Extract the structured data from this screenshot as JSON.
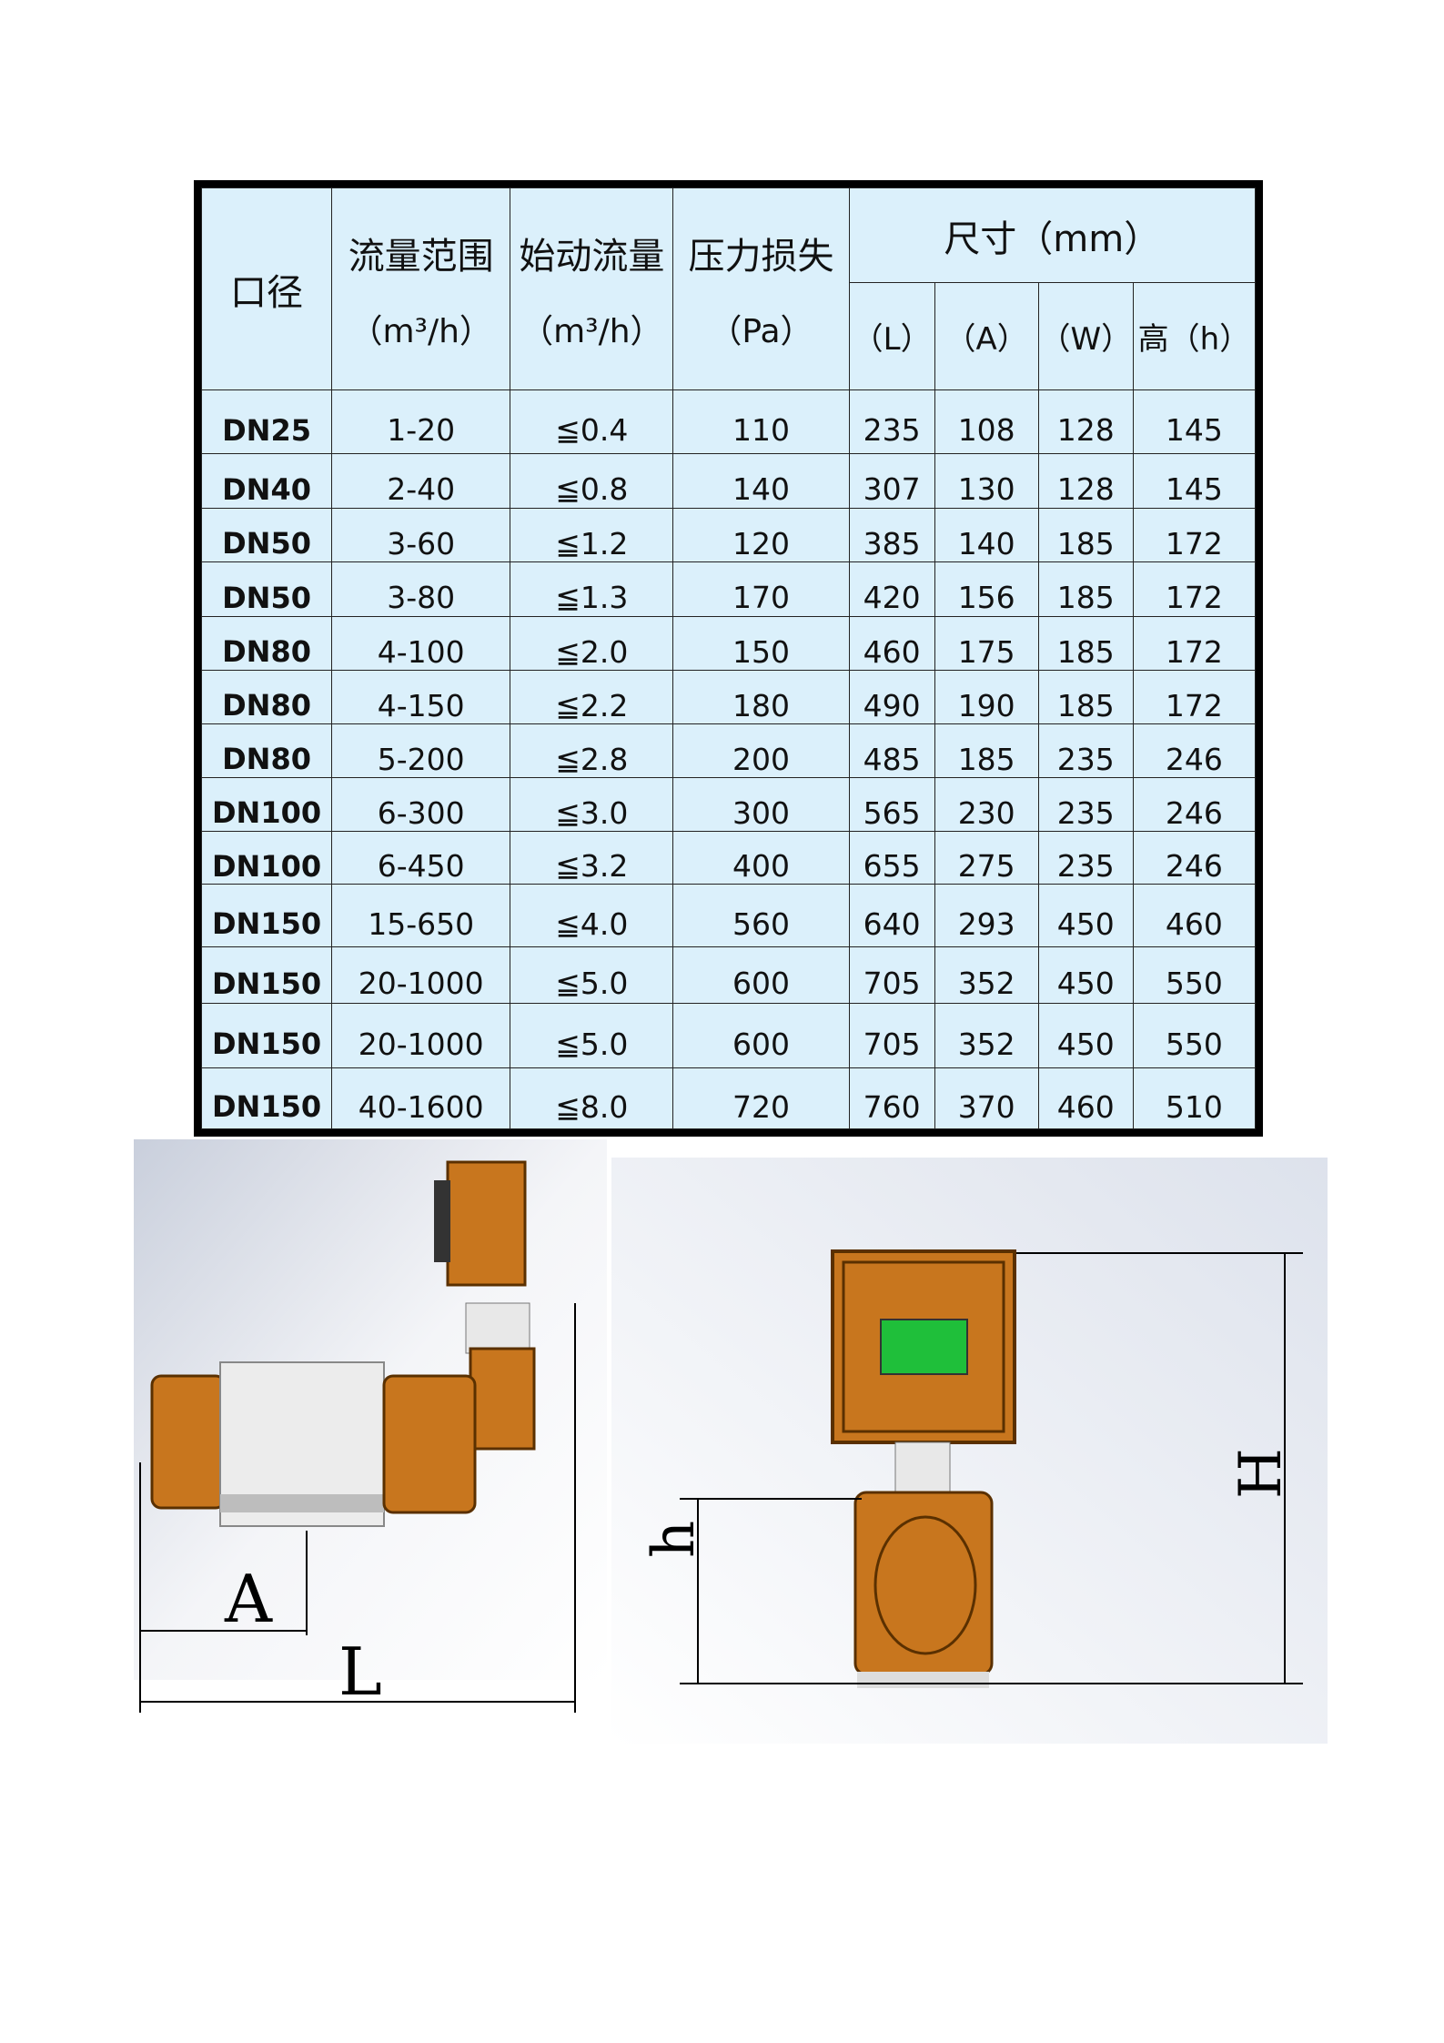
{
  "table": {
    "headers": {
      "caliber": "口径",
      "flow_range": "流量范围",
      "flow_range_unit": "（m³/h）",
      "start_flow": "始动流量",
      "start_flow_unit": "（m³/h）",
      "pressure_loss": "压力损失",
      "pressure_loss_unit": "（Pa）",
      "dimensions": "尺寸（mm）",
      "L": "（L）",
      "A": "（A）",
      "W": "（W）",
      "h": "高（h）"
    },
    "rows": [
      [
        "DN25",
        "1-20",
        "≦0.4",
        "110",
        "235",
        "108",
        "128",
        "145"
      ],
      [
        "DN40",
        "2-40",
        "≦0.8",
        "140",
        "307",
        "130",
        "128",
        "145"
      ],
      [
        "DN50",
        "3-60",
        "≦1.2",
        "120",
        "385",
        "140",
        "185",
        "172"
      ],
      [
        "DN50",
        "3-80",
        "≦1.3",
        "170",
        "420",
        "156",
        "185",
        "172"
      ],
      [
        "DN80",
        "4-100",
        "≦2.0",
        "150",
        "460",
        "175",
        "185",
        "172"
      ],
      [
        "DN80",
        "4-150",
        "≦2.2",
        "180",
        "490",
        "190",
        "185",
        "172"
      ],
      [
        "DN80",
        "5-200",
        "≦2.8",
        "200",
        "485",
        "185",
        "235",
        "246"
      ],
      [
        "DN100",
        "6-300",
        "≦3.0",
        "300",
        "565",
        "230",
        "235",
        "246"
      ],
      [
        "DN100",
        "6-450",
        "≦3.2",
        "400",
        "655",
        "275",
        "235",
        "246"
      ],
      [
        "DN150",
        "15-650",
        "≦4.0",
        "560",
        "640",
        "293",
        "450",
        "460"
      ],
      [
        "DN150",
        "20-1000",
        "≦5.0",
        "600",
        "705",
        "352",
        "450",
        "550"
      ],
      [
        "DN150",
        "20-1000",
        "≦5.0",
        "600",
        "705",
        "352",
        "450",
        "550"
      ],
      [
        "DN150",
        "40-1600",
        "≦8.0",
        "720",
        "760",
        "370",
        "460",
        "510"
      ]
    ],
    "bg_color": "#dbf0fb"
  },
  "drawings": {
    "side_view": {
      "label_A": "A",
      "label_L": "L"
    },
    "front_view": {
      "label_h": "h",
      "label_H": "H"
    },
    "body_color": "#c8761e",
    "display_color": "#1fbf3a"
  }
}
